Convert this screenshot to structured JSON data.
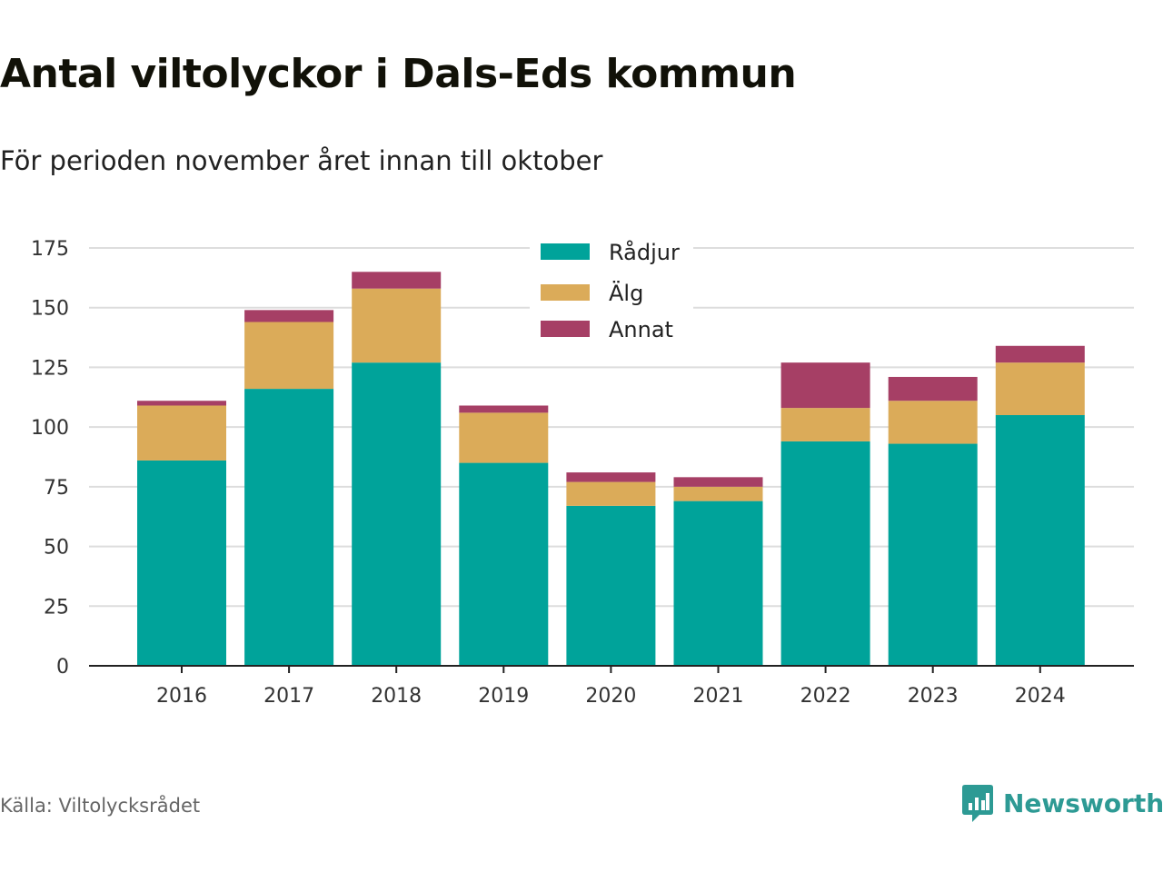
{
  "title": "Antal viltolyckor i Dals-Eds kommun",
  "subtitle": "För perioden november året innan till oktober",
  "source": "Källa: Viltolycksrådet",
  "brand": {
    "name": "Newsworthy",
    "icon": "newsworthy-logo-icon",
    "color": "#2d9a94"
  },
  "chart_data": {
    "type": "bar",
    "stacked": true,
    "categories": [
      "2016",
      "2017",
      "2018",
      "2019",
      "2020",
      "2021",
      "2022",
      "2023",
      "2024"
    ],
    "series": [
      {
        "name": "Rådjur",
        "color": "#00a39a",
        "values": [
          86,
          116,
          127,
          85,
          67,
          69,
          94,
          93,
          105
        ]
      },
      {
        "name": "Älg",
        "color": "#dbab59",
        "values": [
          23,
          28,
          31,
          21,
          10,
          6,
          14,
          18,
          22
        ]
      },
      {
        "name": "Annat",
        "color": "#a63f65",
        "values": [
          2,
          5,
          7,
          3,
          4,
          4,
          19,
          10,
          7
        ]
      }
    ],
    "ylim": [
      0,
      175
    ],
    "yticks": [
      0,
      25,
      50,
      75,
      100,
      125,
      150,
      175
    ],
    "grid": true,
    "legend_position": "top-center",
    "xlabel": "",
    "ylabel": ""
  }
}
